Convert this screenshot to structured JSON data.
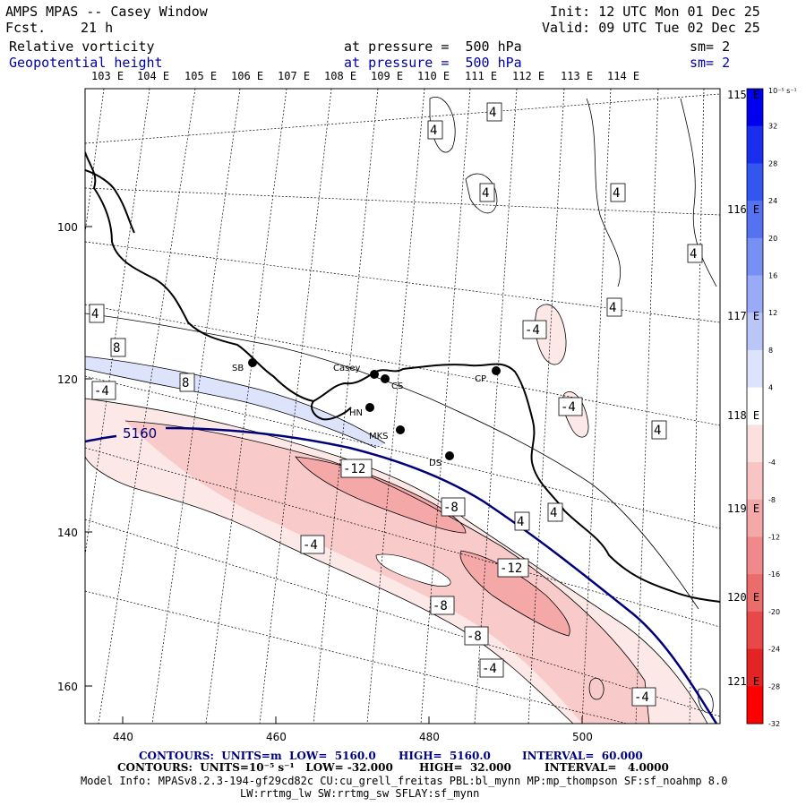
{
  "header": {
    "model": "AMPS MPAS -- Casey Window",
    "fcst_label": "Fcst.",
    "fcst_value": "21 h",
    "init": "Init: 12 UTC Mon 01 Dec 25",
    "valid": "Valid: 09 UTC Tue 02 Dec 25",
    "field1_name": "Relative vorticity",
    "field1_level": "at pressure =  500 hPa",
    "field1_sm": "sm= 2",
    "field2_name": "Geopotential height",
    "field2_level": "at pressure =  500 hPa",
    "field2_sm": "sm= 2"
  },
  "longitude_labels_top": [
    "103 E",
    "104 E",
    "105 E",
    "106 E",
    "107 E",
    "108 E",
    "109 E",
    "110 E",
    "111 E",
    "112 E",
    "113 E",
    "114 E"
  ],
  "longitude_labels_right": [
    "115 E",
    "116 E",
    "117 E",
    "118 E",
    "119 E",
    "120 E",
    "121 E"
  ],
  "y_axis_ticks": [
    "100",
    "120",
    "140",
    "160"
  ],
  "x_axis_ticks": [
    "440",
    "460",
    "480",
    "500"
  ],
  "stations": [
    "SB",
    "Casey",
    "CS",
    "CP",
    "HN",
    "MKS",
    "DS"
  ],
  "contour_labels": {
    "height": "5160",
    "vorticity": [
      "4",
      "4",
      "4",
      "4",
      "4",
      "4",
      "4",
      "4",
      "4",
      "8",
      "8",
      "-4",
      "-4",
      "-4",
      "-4",
      "-4",
      "-4",
      "-8",
      "-8",
      "-8",
      "-12",
      "-12"
    ]
  },
  "colorbar": {
    "unit_label": "10⁻⁵ s⁻¹",
    "ticks": [
      "32",
      "28",
      "24",
      "20",
      "16",
      "12",
      "8",
      "4",
      "-4",
      "-8",
      "-12",
      "-16",
      "-20",
      "-24",
      "-28",
      "-32"
    ],
    "colors": [
      "#0000ee",
      "#1a2ef0",
      "#3355f0",
      "#5572f2",
      "#7790f4",
      "#99aaf6",
      "#bbc6f8",
      "#dde3fb",
      "#ffffff",
      "#fbe0e0",
      "#f8c4c4",
      "#f4a8a8",
      "#f08a8a",
      "#ec6c6c",
      "#e84848",
      "#e42424",
      "#ff0000"
    ]
  },
  "footer": {
    "line1_a": "CONTOURS:  UNITS=m  LOW=  5160.0",
    "line1_b": "HIGH=  5160.0",
    "line1_c": "INTERVAL=  60.000",
    "line2_a": "CONTOURS:  UNITS=10⁻⁵ s⁻¹   LOW= -32.000",
    "line2_b": "HIGH=  32.000",
    "line2_c": "INTERVAL=   4.0000",
    "line3": "Model Info: MPASv8.2.3-194-gf29cd82c CU:cu_grell_freitas PBL:bl_mynn MP:mp_thompson SF:sf_noahmp 8.0",
    "line4": "LW:rrtmg_lw SW:rrtmg_sw SFLAY:sf_mynn"
  }
}
